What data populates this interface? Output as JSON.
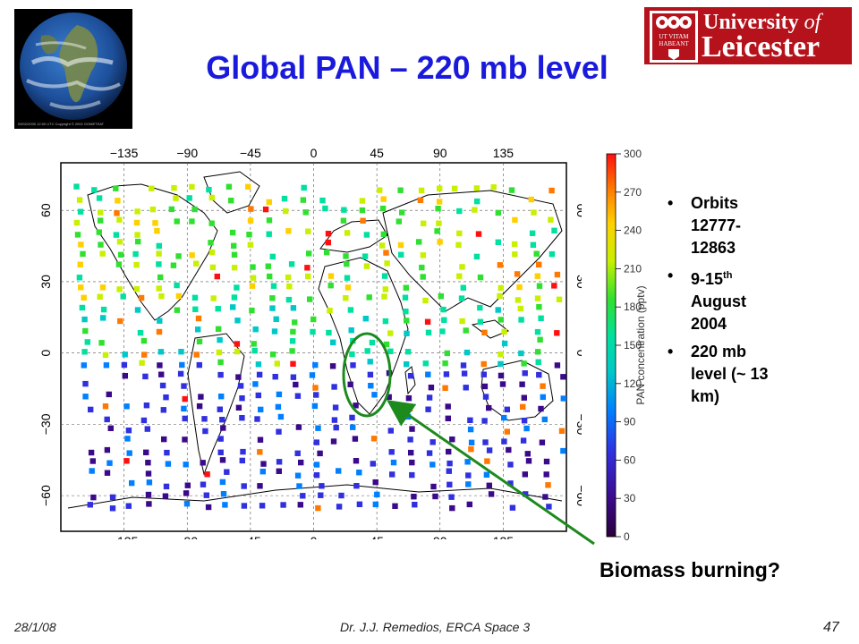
{
  "slide": {
    "title": "Global PAN – 220 mb level",
    "footer": {
      "date": "28/1/08",
      "author": "Dr. J.J. Remedios, ERCA Space 3",
      "page": "47"
    },
    "annotation": "Biomass burning?",
    "bullets": [
      {
        "text": "Orbits 12777-12863"
      },
      {
        "text": "9-15",
        "sup": "th",
        "suffix": " August 2004"
      },
      {
        "text": "220 mb level (~ 13 km)"
      }
    ]
  },
  "logo": {
    "line1": "University",
    "line1_of": "of",
    "line2": "Leicester",
    "crest_text_1": "UT VITAM",
    "crest_text_2": "HABEANT",
    "color": "#b5121b"
  },
  "globe": {
    "caption": "09/02/2000 12:00 UTC Copyright © 2002 GOMETSAT"
  },
  "map": {
    "x_ticks": [
      "−135",
      "−90",
      "−45",
      "0",
      "45",
      "90",
      "135"
    ],
    "y_ticks": [
      "60",
      "30",
      "0",
      "−30",
      "−60"
    ],
    "icons": [
      "highlight-ellipse",
      "arrow"
    ]
  },
  "colorbar": {
    "label": "PAN concentration (pptv)",
    "ticks": [
      "300",
      "270",
      "240",
      "210",
      "180",
      "150",
      "120",
      "90",
      "60",
      "30",
      "0"
    ],
    "colors": [
      "#2b003a",
      "#3b0a8a",
      "#3030e0",
      "#0080ff",
      "#00c8c8",
      "#00e0a0",
      "#30e030",
      "#c8f000",
      "#ffd000",
      "#ff7800",
      "#ff1010"
    ]
  },
  "accent_color": "#1a1adc",
  "arrow_color": "#1d8a1d"
}
